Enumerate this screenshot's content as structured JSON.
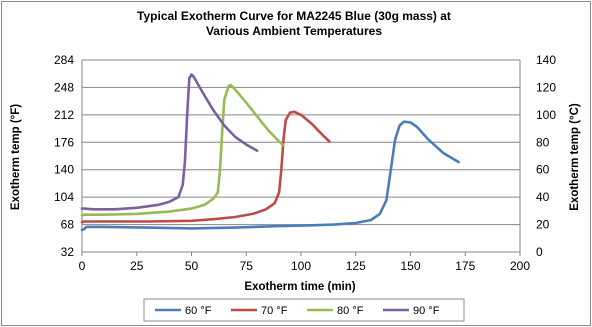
{
  "chart_data": {
    "type": "line",
    "title": [
      "Typical Exotherm Curve for MA2245 Blue (30g mass) at",
      "Various Ambient Temperatures"
    ],
    "xlabel": "Exotherm time (min)",
    "ylabel": "Exotherm temp (°F)",
    "y2label": "Exotherm temp (°C)",
    "xlim": [
      0,
      200
    ],
    "ylim": [
      32,
      284
    ],
    "y2lim": [
      0,
      140
    ],
    "xticks": [
      "0",
      "25",
      "50",
      "75",
      "100",
      "125",
      "150",
      "175",
      "200"
    ],
    "yticks": [
      "32",
      "68",
      "104",
      "140",
      "176",
      "212",
      "248",
      "284"
    ],
    "y2ticks": [
      "0",
      "20",
      "40",
      "60",
      "80",
      "100",
      "120",
      "140"
    ],
    "grid": true,
    "legend_position": "bottom",
    "series": [
      {
        "name": "60 °F",
        "color": "#4a7ebb",
        "points": [
          [
            0,
            61
          ],
          [
            1,
            62
          ],
          [
            2,
            65
          ],
          [
            10,
            65
          ],
          [
            30,
            64
          ],
          [
            50,
            63
          ],
          [
            70,
            64
          ],
          [
            90,
            66
          ],
          [
            105,
            67
          ],
          [
            115,
            68
          ],
          [
            125,
            70
          ],
          [
            132,
            74
          ],
          [
            136,
            82
          ],
          [
            139,
            100
          ],
          [
            141,
            140
          ],
          [
            143,
            180
          ],
          [
            145,
            198
          ],
          [
            147,
            203
          ],
          [
            150,
            202
          ],
          [
            153,
            196
          ],
          [
            158,
            180
          ],
          [
            165,
            162
          ],
          [
            172,
            150
          ]
        ]
      },
      {
        "name": "70 °F",
        "color": "#be4b48",
        "points": [
          [
            0,
            71
          ],
          [
            1,
            72
          ],
          [
            10,
            72
          ],
          [
            30,
            72
          ],
          [
            50,
            73
          ],
          [
            60,
            75
          ],
          [
            70,
            78
          ],
          [
            78,
            82
          ],
          [
            84,
            88
          ],
          [
            88,
            96
          ],
          [
            90,
            110
          ],
          [
            91,
            140
          ],
          [
            92,
            180
          ],
          [
            93,
            205
          ],
          [
            95,
            215
          ],
          [
            97,
            216
          ],
          [
            100,
            212
          ],
          [
            105,
            200
          ],
          [
            110,
            185
          ],
          [
            113,
            177
          ]
        ]
      },
      {
        "name": "80 °F",
        "color": "#98b954",
        "points": [
          [
            0,
            80
          ],
          [
            1,
            81
          ],
          [
            10,
            81
          ],
          [
            25,
            82
          ],
          [
            40,
            85
          ],
          [
            50,
            89
          ],
          [
            56,
            94
          ],
          [
            60,
            102
          ],
          [
            62,
            110
          ],
          [
            63,
            140
          ],
          [
            64,
            190
          ],
          [
            65,
            232
          ],
          [
            67,
            250
          ],
          [
            68,
            251
          ],
          [
            70,
            245
          ],
          [
            75,
            228
          ],
          [
            80,
            210
          ],
          [
            85,
            192
          ],
          [
            90,
            177
          ],
          [
            92,
            172
          ]
        ]
      },
      {
        "name": "90 °F",
        "color": "#7d60a0",
        "points": [
          [
            0,
            89
          ],
          [
            1,
            89
          ],
          [
            5,
            88
          ],
          [
            15,
            88
          ],
          [
            25,
            90
          ],
          [
            35,
            94
          ],
          [
            40,
            98
          ],
          [
            44,
            104
          ],
          [
            46,
            120
          ],
          [
            47,
            150
          ],
          [
            48,
            210
          ],
          [
            49,
            260
          ],
          [
            50,
            265
          ],
          [
            51,
            262
          ],
          [
            55,
            242
          ],
          [
            60,
            218
          ],
          [
            65,
            198
          ],
          [
            70,
            183
          ],
          [
            75,
            173
          ],
          [
            80,
            165
          ]
        ]
      }
    ]
  }
}
